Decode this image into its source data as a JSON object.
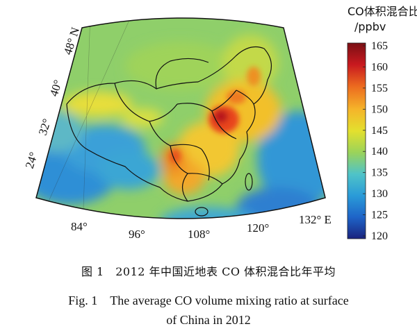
{
  "figure": {
    "caption_cn": "图 1　2012 年中国近地表 CO 体积混合比年平均",
    "caption_en_line1": "Fig. 1　The average CO volume mixing ratio at surface",
    "caption_en_line2": "of China in 2012"
  },
  "map": {
    "longitude_labels": [
      "84°",
      "96°",
      "108°",
      "120°",
      "132° E"
    ],
    "latitude_labels": [
      "48° N",
      "40°",
      "32°",
      "24°"
    ]
  },
  "colorbar": {
    "title_line1": "CO体积混合比",
    "title_line2": "/ppbv",
    "min": 120,
    "max": 165,
    "ticks": [
      "165",
      "160",
      "155",
      "150",
      "145",
      "140",
      "135",
      "130",
      "125",
      "120"
    ],
    "colors": [
      "#1a237e",
      "#1e64c8",
      "#2a9bd8",
      "#4fc3c8",
      "#9ad35a",
      "#e3e02e",
      "#f5b52a",
      "#ec6a1f",
      "#c8191f",
      "#7a0f14"
    ]
  }
}
